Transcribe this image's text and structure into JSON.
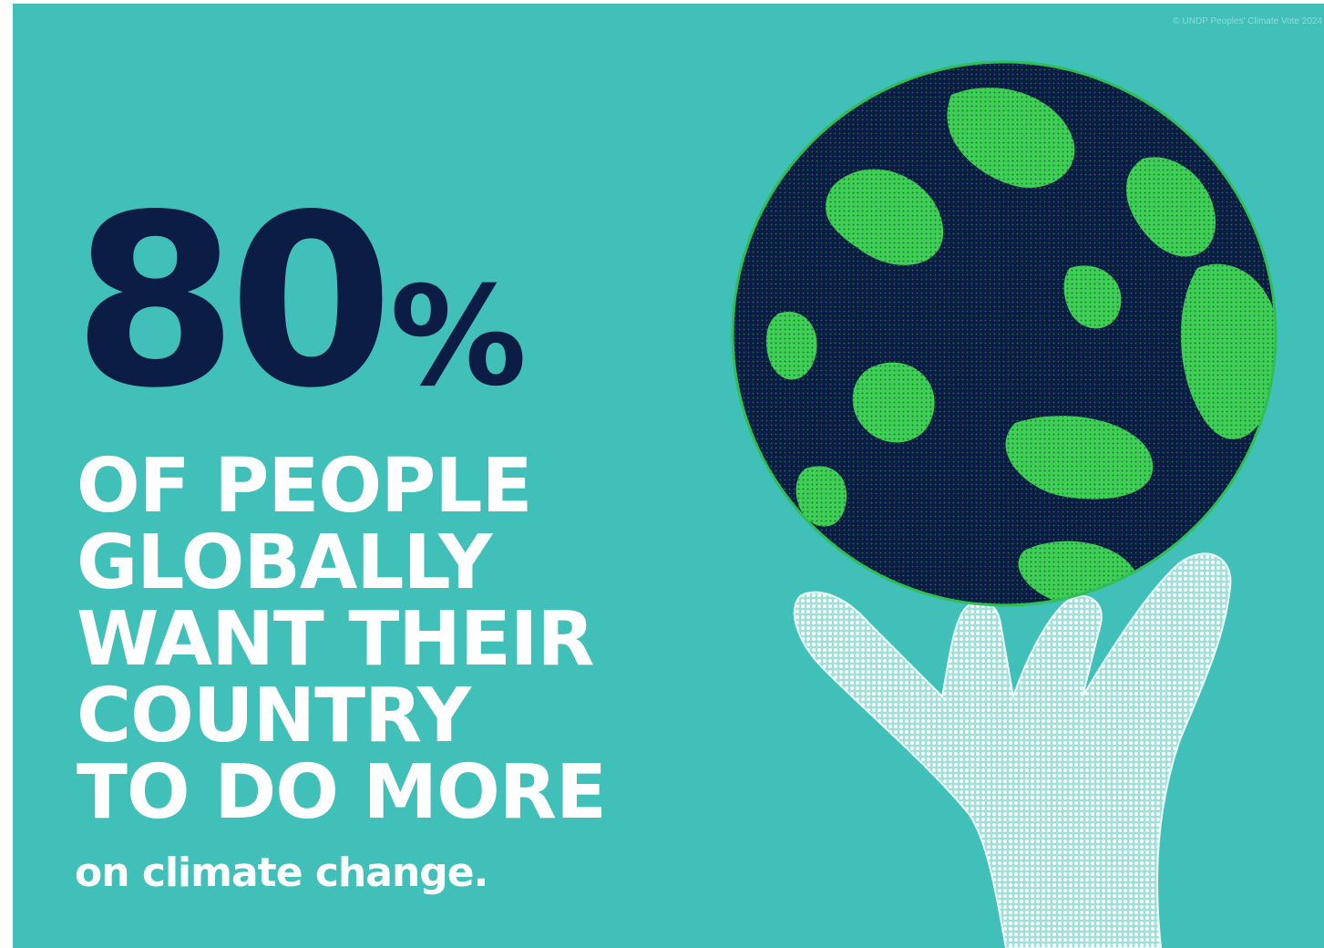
{
  "credit": "© UNDP Peoples' Climate Vote 2024",
  "stat": {
    "number": "80",
    "percent_sign": "%"
  },
  "headline": {
    "lines": [
      "OF PEOPLE",
      "GLOBALLY",
      "WANT THEIR",
      "COUNTRY",
      "TO DO MORE"
    ]
  },
  "subline": "on climate change.",
  "colors": {
    "background": "#41c0b9",
    "navy": "#0b1c45",
    "green": "#3fcf55",
    "white": "#ffffff"
  },
  "illustration": {
    "globe": "halftone-globe-icon",
    "hand": "halftone-hand-icon"
  }
}
